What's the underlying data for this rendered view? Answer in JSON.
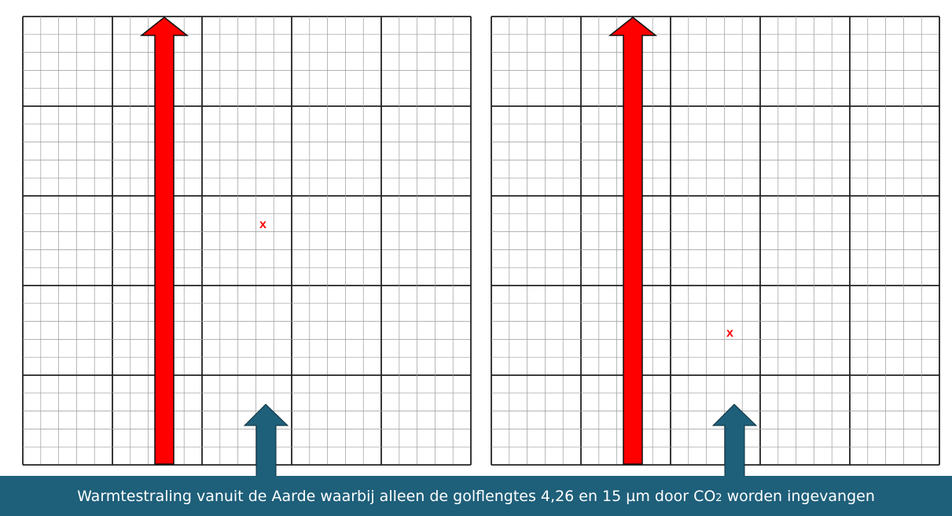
{
  "panels": [
    {
      "id": "left",
      "x_marker": "x"
    },
    {
      "id": "right",
      "x_marker": "x"
    }
  ],
  "caption": {
    "text_before": "Warmtestraling vanuit de Aarde waarbij alleen de golflengtes 4,26 en 15  µm door CO",
    "subscript": "2",
    "text_after": " worden ingevangen"
  },
  "colors": {
    "arrow_red": "#ff0000",
    "arrow_blue": "#1e5f7a",
    "caption_bg": "#1e5f7a",
    "grid_major": "#222222",
    "grid_minor": "#9a9a9a"
  }
}
